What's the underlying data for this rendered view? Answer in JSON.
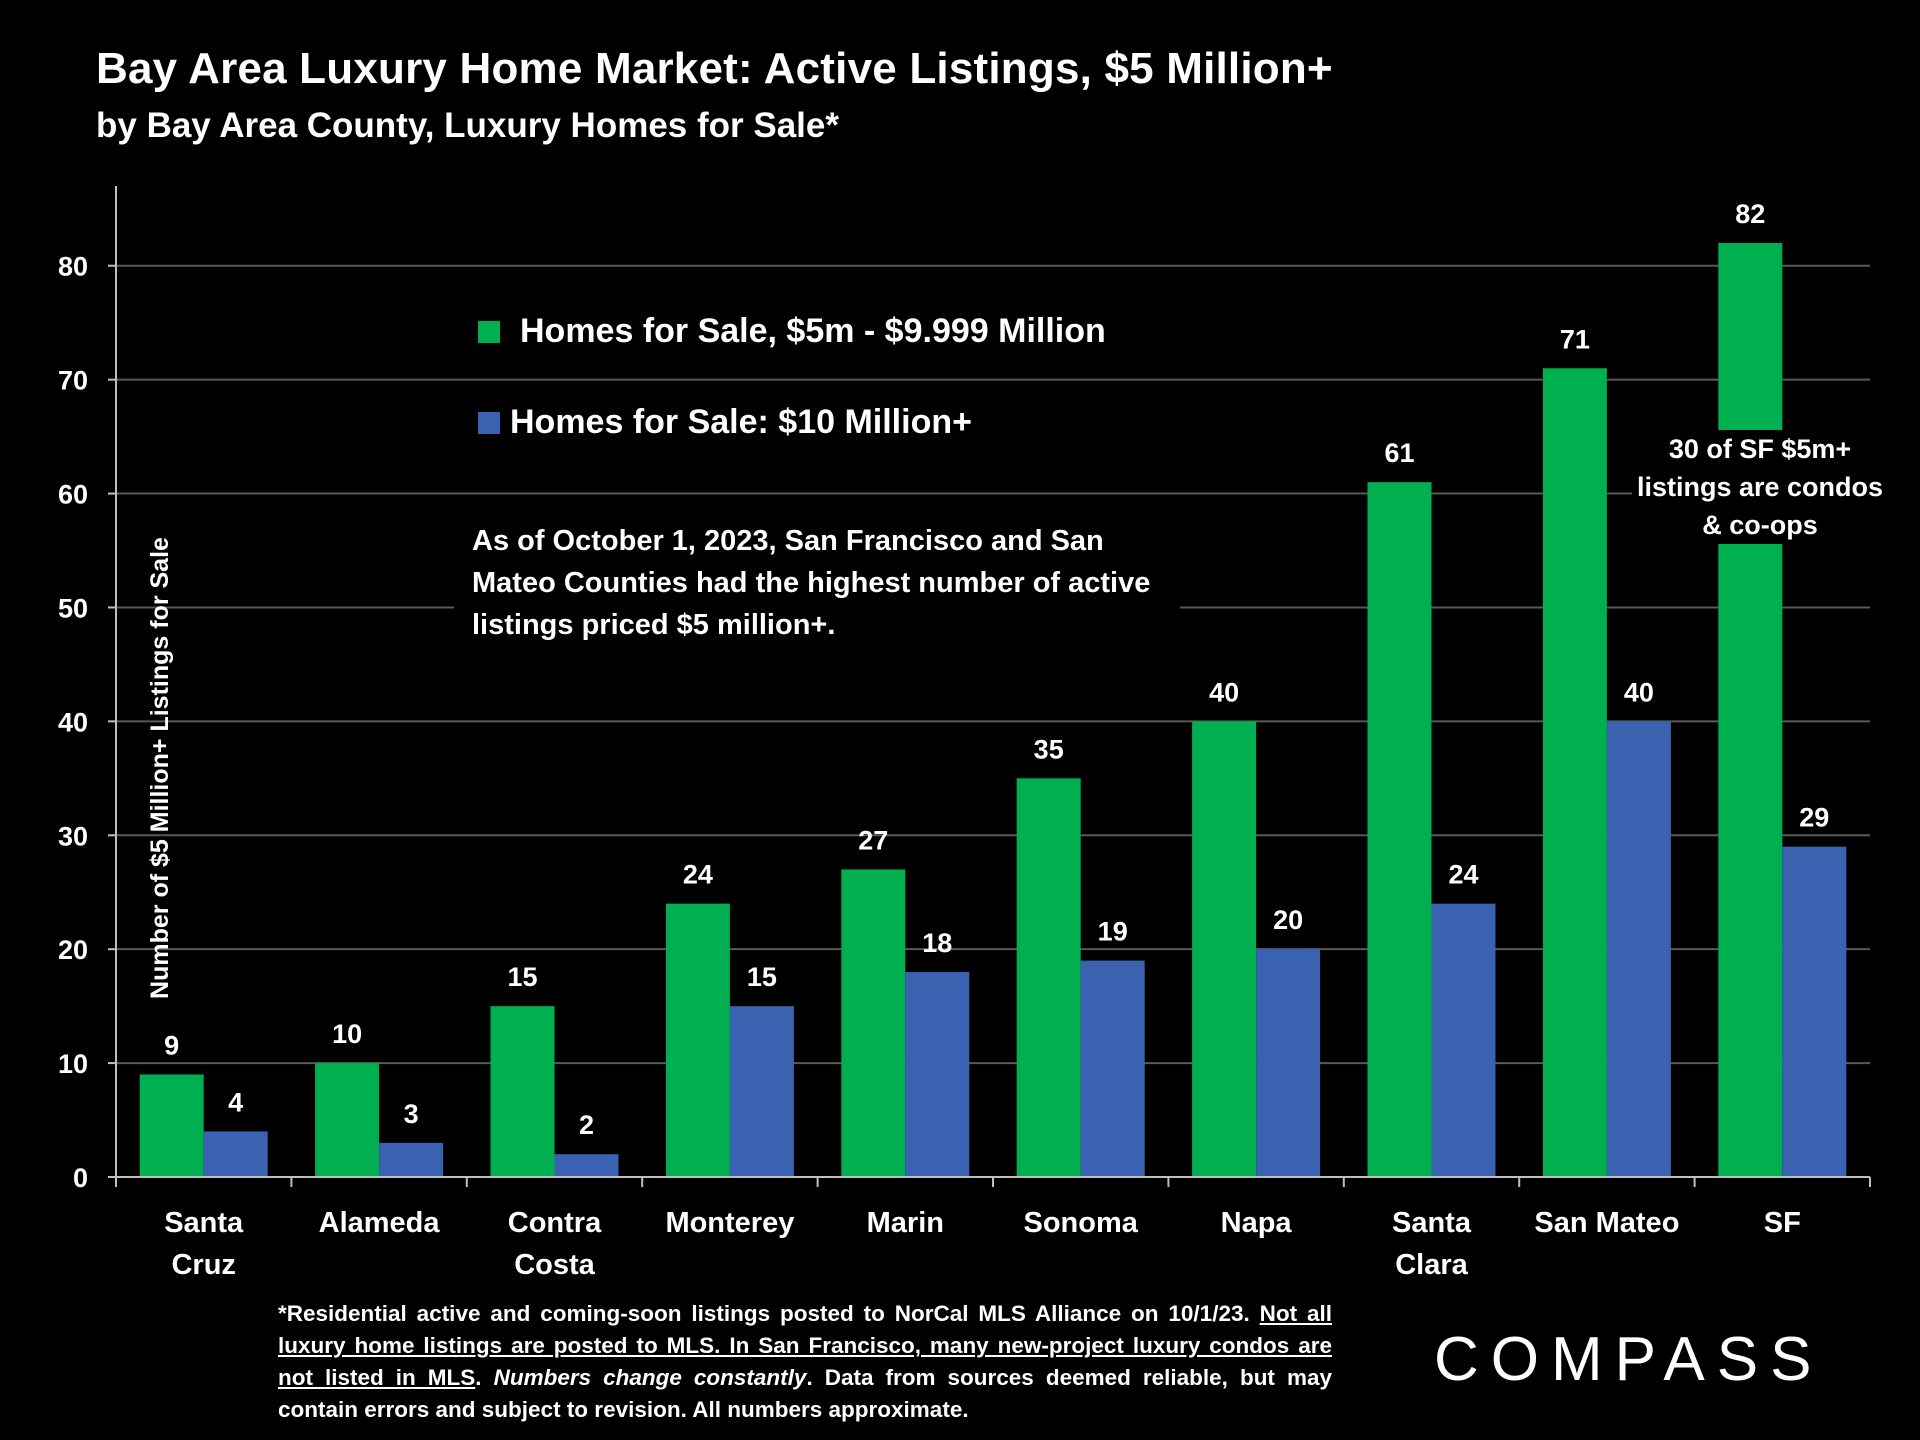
{
  "title": "Bay Area Luxury Home Market: Active Listings, $5 Million+",
  "subtitle": "by Bay Area County, Luxury Homes for Sale*",
  "legend": {
    "green_label": "Homes for Sale, $5m - $9.999 Million",
    "blue_label": "Homes for Sale:  $10 Million+"
  },
  "note": {
    "text": "As of October 1, 2023, San Francisco and San Mateo Counties had the highest number of active listings priced $5 million+."
  },
  "sf_note": {
    "text": "30 of SF $5m+ listings are condos & co-ops"
  },
  "footnote": {
    "part1": "*Residential active and coming-soon listings posted to NorCal MLS Alliance on 10/1/23. ",
    "part2": "Not all luxury home listings are posted to MLS. In San Francisco, many new-project luxury condos are not listed in MLS",
    "part3": ". ",
    "part4": "Numbers change constantly",
    "part5": ". Data from sources deemed reliable, but may contain errors and subject to revision. All numbers approximate."
  },
  "logo": "COMPASS",
  "colors": {
    "green": "#00b050",
    "blue": "#3a62b0",
    "grid": "#595959",
    "background": "#000000"
  },
  "chart_data": {
    "type": "bar",
    "title": "Bay Area Luxury Home Market: Active Listings, $5 Million+",
    "xlabel": "",
    "ylabel": "Number of $5 Million+ Listings for Sale",
    "ylim": [
      0,
      87
    ],
    "yticks": [
      0,
      10,
      20,
      30,
      40,
      50,
      60,
      70,
      80
    ],
    "grid": true,
    "legend_position": "top-center",
    "categories": [
      [
        "Santa",
        "Cruz"
      ],
      [
        "Alameda"
      ],
      [
        "Contra",
        "Costa"
      ],
      [
        "Monterey"
      ],
      [
        "Marin"
      ],
      [
        "Sonoma"
      ],
      [
        "Napa"
      ],
      [
        "Santa",
        "Clara"
      ],
      [
        "San Mateo"
      ],
      [
        "SF"
      ]
    ],
    "series": [
      {
        "name": "Homes for Sale, $5m - $9.999 Million",
        "color": "#00b050",
        "values": [
          9,
          10,
          15,
          24,
          27,
          35,
          40,
          61,
          71,
          82
        ]
      },
      {
        "name": "Homes for Sale:  $10 Million+",
        "color": "#3a62b0",
        "values": [
          4,
          3,
          2,
          15,
          18,
          19,
          20,
          24,
          40,
          29
        ]
      }
    ]
  }
}
